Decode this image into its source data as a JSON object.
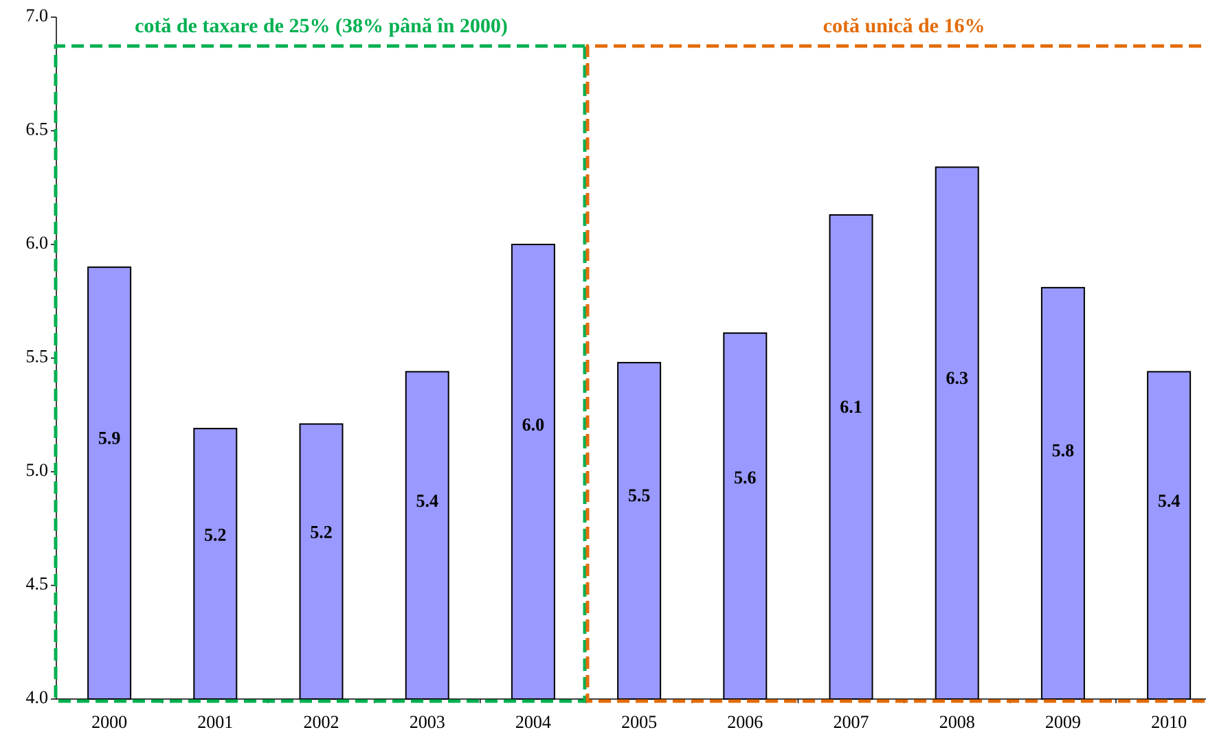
{
  "chart_data": {
    "type": "bar",
    "categories": [
      "2000",
      "2001",
      "2002",
      "2003",
      "2004",
      "2005",
      "2006",
      "2007",
      "2008",
      "2009",
      "2010"
    ],
    "values": [
      5.9,
      5.19,
      5.21,
      5.44,
      6.0,
      5.48,
      5.61,
      6.13,
      6.34,
      5.81,
      5.44
    ],
    "value_labels": [
      "5.9",
      "5.2",
      "5.2",
      "5.4",
      "6.0",
      "5.5",
      "5.6",
      "6.1",
      "6.3",
      "5.8",
      "5.4"
    ],
    "color": "#9999ff",
    "ylim": [
      4.0,
      7.0
    ],
    "yticks": [
      {
        "value": 4,
        "label": "4.0"
      },
      {
        "value": 4.5,
        "label": "4.5"
      },
      {
        "value": 5,
        "label": "5.0"
      },
      {
        "value": 5.5,
        "label": "5.5"
      },
      {
        "value": 6,
        "label": "6.0"
      },
      {
        "value": 6.5,
        "label": "6.5"
      },
      {
        "value": 7,
        "label": "7.0"
      }
    ],
    "regions": [
      {
        "label": "cotă de taxare de 25% (38% până în 2000)",
        "color": "#00b050",
        "from": "2000",
        "to": "2004"
      },
      {
        "label": "cotă unică de 16%",
        "color": "#e36c09",
        "from": "2005",
        "to": "2010"
      }
    ]
  }
}
